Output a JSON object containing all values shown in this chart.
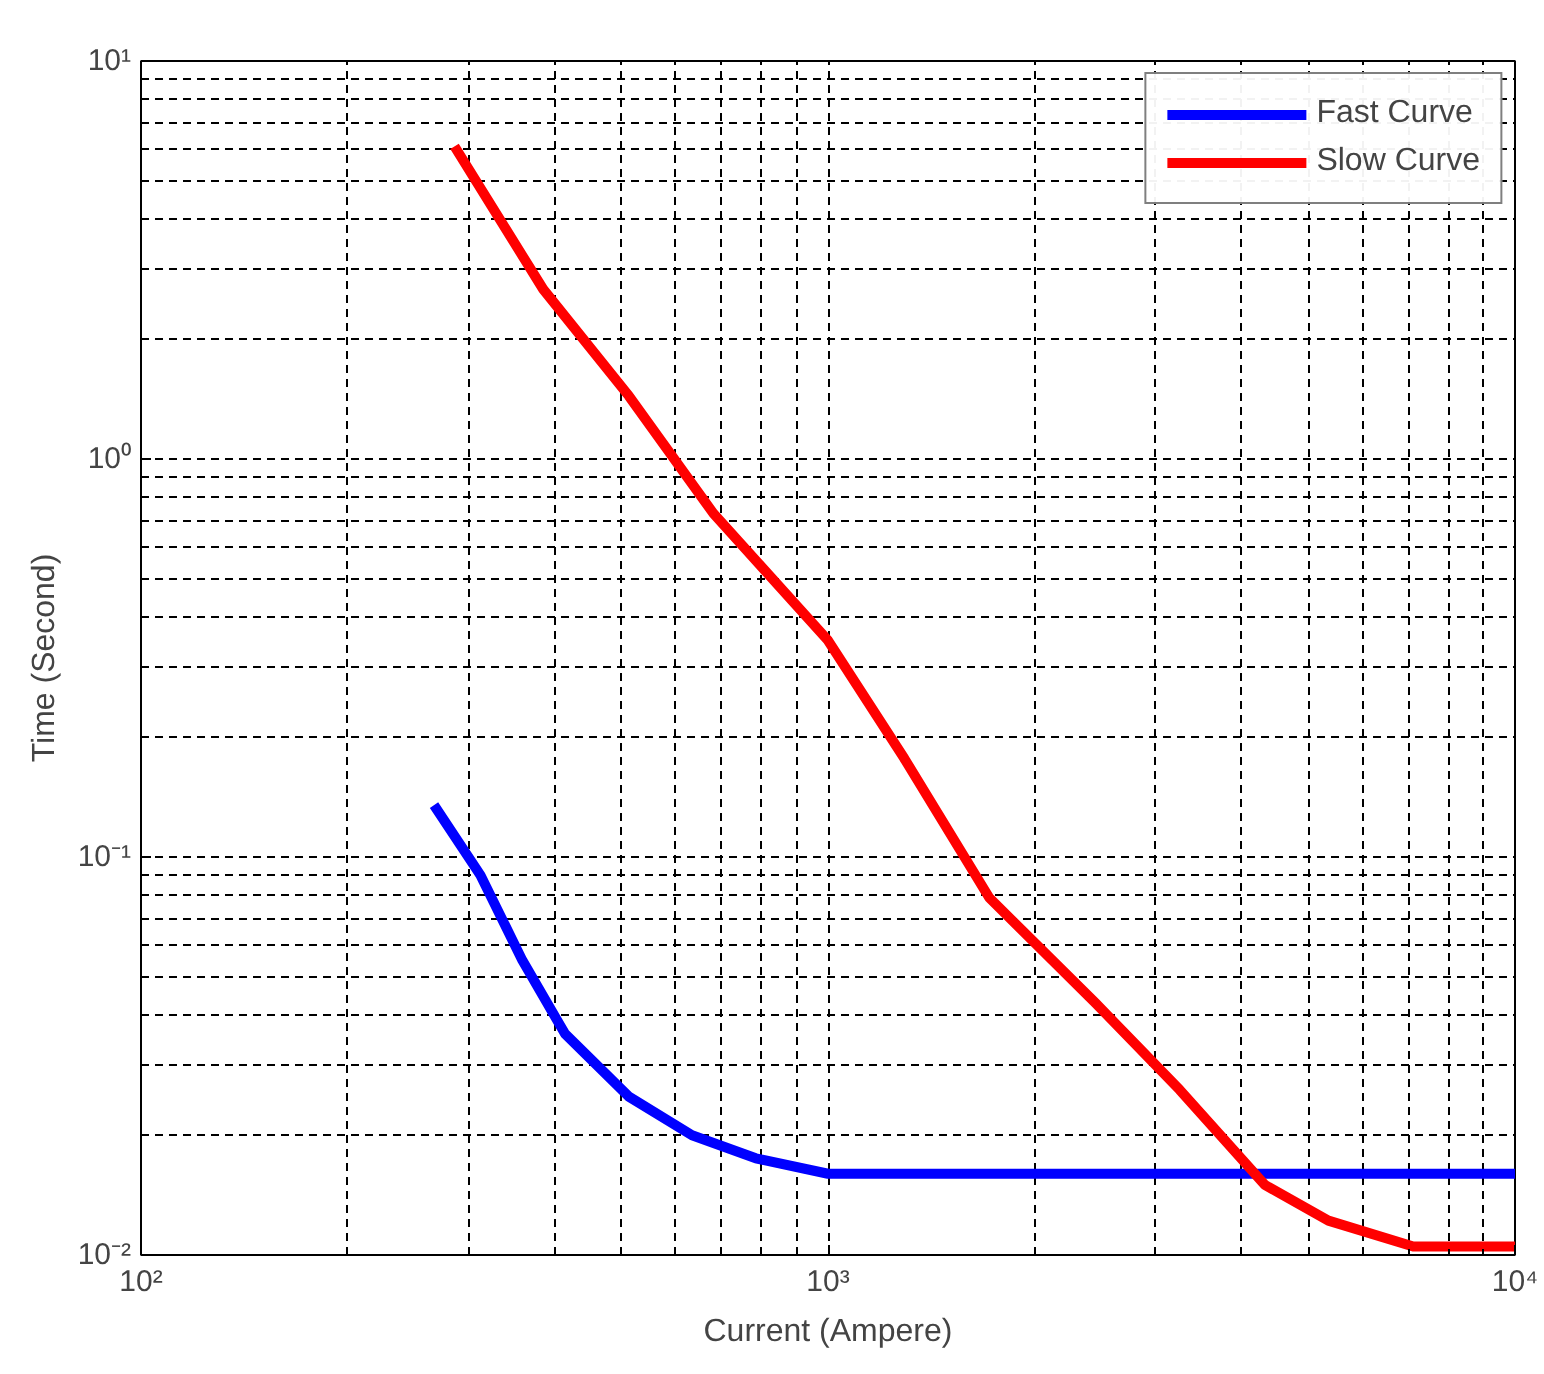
{
  "chart_data": {
    "type": "line",
    "xlabel": "Current (Ampere)",
    "ylabel": "Time (Second)",
    "log": "xy",
    "grid": true,
    "legend": "top right",
    "line_style": "solid",
    "marker": "none",
    "xlim": [
      100,
      10000
    ],
    "ylim": [
      0.01,
      10
    ],
    "xticks": [
      {
        "value": 100,
        "label": "10²"
      },
      {
        "value": 1000,
        "label": "10³"
      },
      {
        "value": 10000,
        "label": "10⁴"
      }
    ],
    "yticks": [
      {
        "value": 0.01,
        "label": "10⁻²"
      },
      {
        "value": 0.1,
        "label": "10⁻¹"
      },
      {
        "value": 1,
        "label": "10⁰"
      },
      {
        "value": 10,
        "label": "10¹"
      }
    ],
    "series": [
      {
        "name": "Fast Curve",
        "color": "#0000ff",
        "x": [
          267,
          312,
          359,
          414,
          513,
          634,
          785,
          1000,
          10000
        ],
        "values": [
          0.135,
          0.09,
          0.055,
          0.036,
          0.025,
          0.02,
          0.0175,
          0.016,
          0.016
        ]
      },
      {
        "name": "Slow Curve",
        "color": "#ff0000",
        "x": [
          286,
          385,
          513,
          681,
          1000,
          1291,
          1717,
          2450,
          3250,
          4324,
          5350,
          7110,
          10000
        ],
        "values": [
          6.1,
          2.67,
          1.44,
          0.73,
          0.35,
          0.177,
          0.079,
          0.043,
          0.026,
          0.015,
          0.0122,
          0.0105,
          0.0105
        ]
      }
    ]
  }
}
